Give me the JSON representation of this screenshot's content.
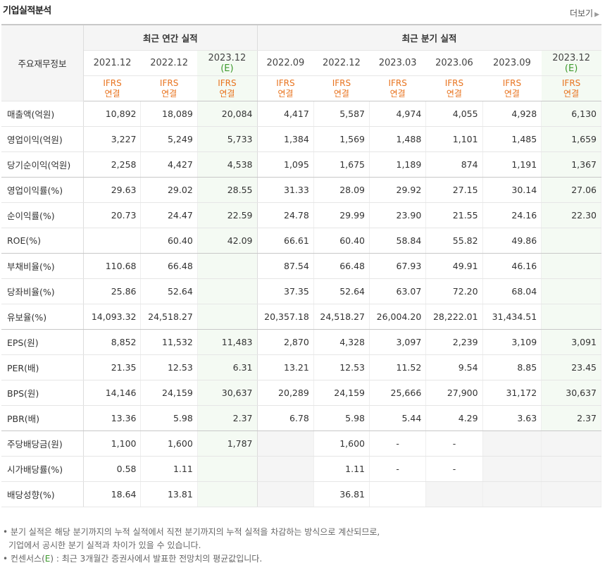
{
  "header": {
    "title": "기업실적분석",
    "more_label": "더보기"
  },
  "table": {
    "left_header": "주요재무정보",
    "group_annual": "최근 연간 실적",
    "group_quarter": "최근 분기 실적",
    "periods": [
      "2021.12",
      "2022.12",
      "2023.12",
      "2022.09",
      "2022.12",
      "2023.03",
      "2023.06",
      "2023.09",
      "2023.12"
    ],
    "estimate_mark": "(E)",
    "ifrs_line1": "IFRS",
    "ifrs_line2": "연결",
    "rows": [
      {
        "label": "매출액(억원)",
        "values": [
          "10,892",
          "18,089",
          "20,084",
          "4,417",
          "5,587",
          "4,974",
          "4,055",
          "4,928",
          "6,130"
        ]
      },
      {
        "label": "영업이익(억원)",
        "values": [
          "3,227",
          "5,249",
          "5,733",
          "1,384",
          "1,569",
          "1,488",
          "1,101",
          "1,485",
          "1,659"
        ]
      },
      {
        "label": "당기순이익(억원)",
        "values": [
          "2,258",
          "4,427",
          "4,538",
          "1,095",
          "1,675",
          "1,189",
          "874",
          "1,191",
          "1,367"
        ]
      },
      {
        "label": "영업이익률(%)",
        "values": [
          "29.63",
          "29.02",
          "28.55",
          "31.33",
          "28.09",
          "29.92",
          "27.15",
          "30.14",
          "27.06"
        ]
      },
      {
        "label": "순이익률(%)",
        "values": [
          "20.73",
          "24.47",
          "22.59",
          "24.78",
          "29.99",
          "23.90",
          "21.55",
          "24.16",
          "22.30"
        ]
      },
      {
        "label": "ROE(%)",
        "values": [
          "",
          "60.40",
          "42.09",
          "66.61",
          "60.40",
          "58.84",
          "55.82",
          "49.86",
          ""
        ]
      },
      {
        "label": "부채비율(%)",
        "values": [
          "110.68",
          "66.48",
          "",
          "87.54",
          "66.48",
          "67.93",
          "49.91",
          "46.16",
          ""
        ]
      },
      {
        "label": "당좌비율(%)",
        "values": [
          "25.86",
          "52.64",
          "",
          "37.35",
          "52.64",
          "63.07",
          "72.20",
          "68.04",
          ""
        ]
      },
      {
        "label": "유보율(%)",
        "values": [
          "14,093.32",
          "24,518.27",
          "",
          "20,357.18",
          "24,518.27",
          "26,004.20",
          "28,222.01",
          "31,434.51",
          ""
        ]
      },
      {
        "label": "EPS(원)",
        "values": [
          "8,852",
          "11,532",
          "11,483",
          "2,870",
          "4,328",
          "3,097",
          "2,239",
          "3,109",
          "3,091"
        ]
      },
      {
        "label": "PER(배)",
        "values": [
          "21.35",
          "12.53",
          "6.31",
          "13.21",
          "12.53",
          "11.52",
          "9.54",
          "8.85",
          "23.45"
        ]
      },
      {
        "label": "BPS(원)",
        "values": [
          "14,146",
          "24,159",
          "30,637",
          "20,289",
          "24,159",
          "25,666",
          "27,900",
          "31,172",
          "30,637"
        ]
      },
      {
        "label": "PBR(배)",
        "values": [
          "13.36",
          "5.98",
          "2.37",
          "6.78",
          "5.98",
          "5.44",
          "4.29",
          "3.63",
          "2.37"
        ]
      },
      {
        "label": "주당배당금(원)",
        "values": [
          "1,100",
          "1,600",
          "1,787",
          "",
          "1,600",
          "-",
          "-",
          "",
          ""
        ]
      },
      {
        "label": "시가배당률(%)",
        "values": [
          "0.58",
          "1.11",
          "",
          "",
          "1.11",
          "-",
          "-",
          "",
          ""
        ]
      },
      {
        "label": "배당성향(%)",
        "values": [
          "18.64",
          "13.81",
          "",
          "",
          "36.81",
          "",
          "",
          "",
          ""
        ]
      }
    ]
  },
  "notes": {
    "line1": "분기 실적은 해당 분기까지의 누적 실적에서 직전 분기까지의 누적 실적을 차감하는 방식으로 계산되므로,",
    "line2": "기업에서 공시한 분기 실적과 차이가 있을 수 있습니다.",
    "line3_pre": "컨센서스(",
    "line3_e": "E",
    "line3_post": ") : 최근 3개월간 증권사에서 발표한 전망치의 평균값입니다."
  }
}
